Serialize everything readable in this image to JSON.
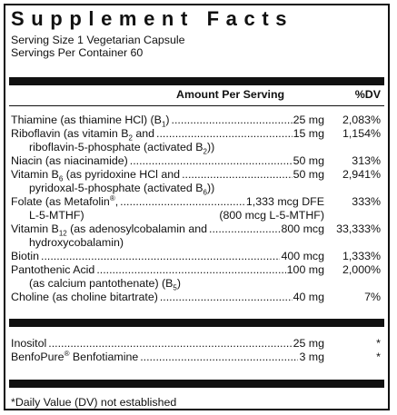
{
  "title": "Supplement Facts",
  "serving_size": "Serving Size 1 Vegetarian Capsule",
  "servings_per_container": "Servings Per Container 60",
  "header": {
    "amount": "Amount Per Serving",
    "dv": "%DV"
  },
  "rows": [
    {
      "name": "Thiamine (as thiamine HCl) (B",
      "sub": "1",
      "tail": ")",
      "amount": "25 mg",
      "dv": "2,083%"
    },
    {
      "name": "Riboflavin (as vitamin B",
      "sub": "2",
      "tail": " and",
      "amount": "15 mg",
      "dv": "1,154%"
    },
    {
      "cont": "riboflavin-5-phosphate (activated B",
      "sub": "2",
      "tail": "))"
    },
    {
      "name": "Niacin (as niacinamide)",
      "amount": "50 mg",
      "dv": "313%"
    },
    {
      "name": "Vitamin B",
      "sub": "6",
      "tail": " (as pyridoxine HCl and",
      "amount": "50 mg",
      "dv": "2,941%"
    },
    {
      "cont": "pyridoxal-5-phosphate (activated B",
      "sub": "6",
      "tail": "))"
    },
    {
      "name": "Folate (as Metafolin",
      "sup": "®",
      "tail": ",",
      "amount": "1,333 mcg DFE",
      "dv": "333%"
    },
    {
      "cont2": "L-5-MTHF)",
      "right": "(800 mcg L-5-MTHF)"
    },
    {
      "name": "Vitamin B",
      "sub": "12",
      "tail": " (as adenosylcobalamin and",
      "amount": "800 mcg",
      "dv": "33,333%"
    },
    {
      "cont": "hydroxycobalamin)"
    },
    {
      "name": "Biotin",
      "amount": "400 mcg",
      "dv": "1,333%"
    },
    {
      "name": "Pantothenic Acid",
      "amount": "100 mg",
      "dv": "2,000%"
    },
    {
      "cont": "(as calcium pantothenate) (B",
      "sub": "5",
      "tail": ")"
    },
    {
      "name": "Choline (as choline bitartrate)",
      "amount": "40 mg",
      "dv": "7%"
    }
  ],
  "other_rows": [
    {
      "name": "Inositol",
      "amount": "25 mg",
      "dv": "*"
    },
    {
      "name": "BenfoPure",
      "sup": "®",
      "tail": " Benfotiamine",
      "amount": "3 mg",
      "dv": "*"
    }
  ],
  "footnote": "*Daily Value (DV) not established"
}
